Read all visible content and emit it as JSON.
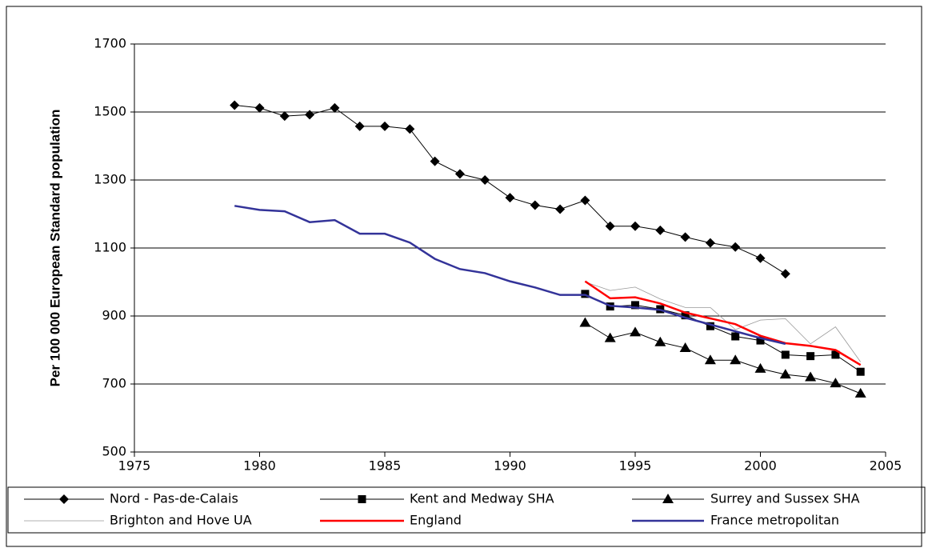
{
  "chart_data": {
    "type": "line",
    "y_label": "Per 100 000 European Standard population",
    "x": [
      1979,
      1980,
      1981,
      1982,
      1983,
      1984,
      1985,
      1986,
      1987,
      1988,
      1989,
      1990,
      1991,
      1992,
      1993,
      1994,
      1995,
      1996,
      1997,
      1998,
      1999,
      2000,
      2001,
      2002,
      2003,
      2004
    ],
    "series": [
      {
        "name": "Nord - Pas-de-Calais",
        "color": "#000000",
        "marker": "diamond",
        "width": 1,
        "values": [
          1520,
          1512,
          1488,
          1492,
          1512,
          1458,
          1458,
          1450,
          1355,
          1318,
          1300,
          1248,
          1226,
          1214,
          1240,
          1164,
          1164,
          1152,
          1132,
          1115,
          1103,
          1070,
          1024,
          null,
          null,
          null
        ]
      },
      {
        "name": "Kent and Medway SHA",
        "color": "#000000",
        "marker": "square",
        "width": 1,
        "values": [
          null,
          null,
          null,
          null,
          null,
          null,
          null,
          null,
          null,
          null,
          null,
          null,
          null,
          null,
          965,
          928,
          932,
          920,
          902,
          870,
          840,
          828,
          786,
          782,
          786,
          736
        ]
      },
      {
        "name": "Surrey and Sussex SHA",
        "color": "#000000",
        "marker": "triangle",
        "width": 1,
        "values": [
          null,
          null,
          null,
          null,
          null,
          null,
          null,
          null,
          null,
          null,
          null,
          null,
          null,
          null,
          880,
          835,
          852,
          823,
          806,
          770,
          770,
          745,
          728,
          720,
          702,
          672
        ]
      },
      {
        "name": "Brighton and Hove UA",
        "color": "#999999",
        "marker": "none",
        "width": 0.8,
        "values": [
          null,
          null,
          null,
          null,
          null,
          null,
          null,
          null,
          null,
          null,
          null,
          null,
          null,
          null,
          1000,
          975,
          985,
          950,
          925,
          925,
          860,
          888,
          892,
          818,
          868,
          765
        ]
      },
      {
        "name": "England",
        "color": "#ff0000",
        "marker": "none",
        "width": 2.5,
        "values": [
          null,
          null,
          null,
          null,
          null,
          null,
          null,
          null,
          null,
          null,
          null,
          null,
          null,
          null,
          1002,
          952,
          955,
          937,
          910,
          893,
          876,
          842,
          820,
          812,
          800,
          756
        ]
      },
      {
        "name": "France metropolitan",
        "color": "#333399",
        "marker": "none",
        "width": 2.5,
        "values": [
          1224,
          1212,
          1208,
          1176,
          1182,
          1142,
          1142,
          1116,
          1068,
          1038,
          1026,
          1002,
          984,
          962,
          962,
          930,
          925,
          918,
          895,
          875,
          855,
          835,
          818,
          null,
          null,
          null
        ]
      }
    ],
    "xlim": [
      1975,
      2005
    ],
    "xticks": [
      1975,
      1980,
      1985,
      1990,
      1995,
      2000,
      2005
    ],
    "ylim": [
      500,
      1700
    ],
    "yticks": [
      500,
      700,
      900,
      1100,
      1300,
      1500,
      1700
    ],
    "grid": true,
    "legend": "bottom"
  }
}
